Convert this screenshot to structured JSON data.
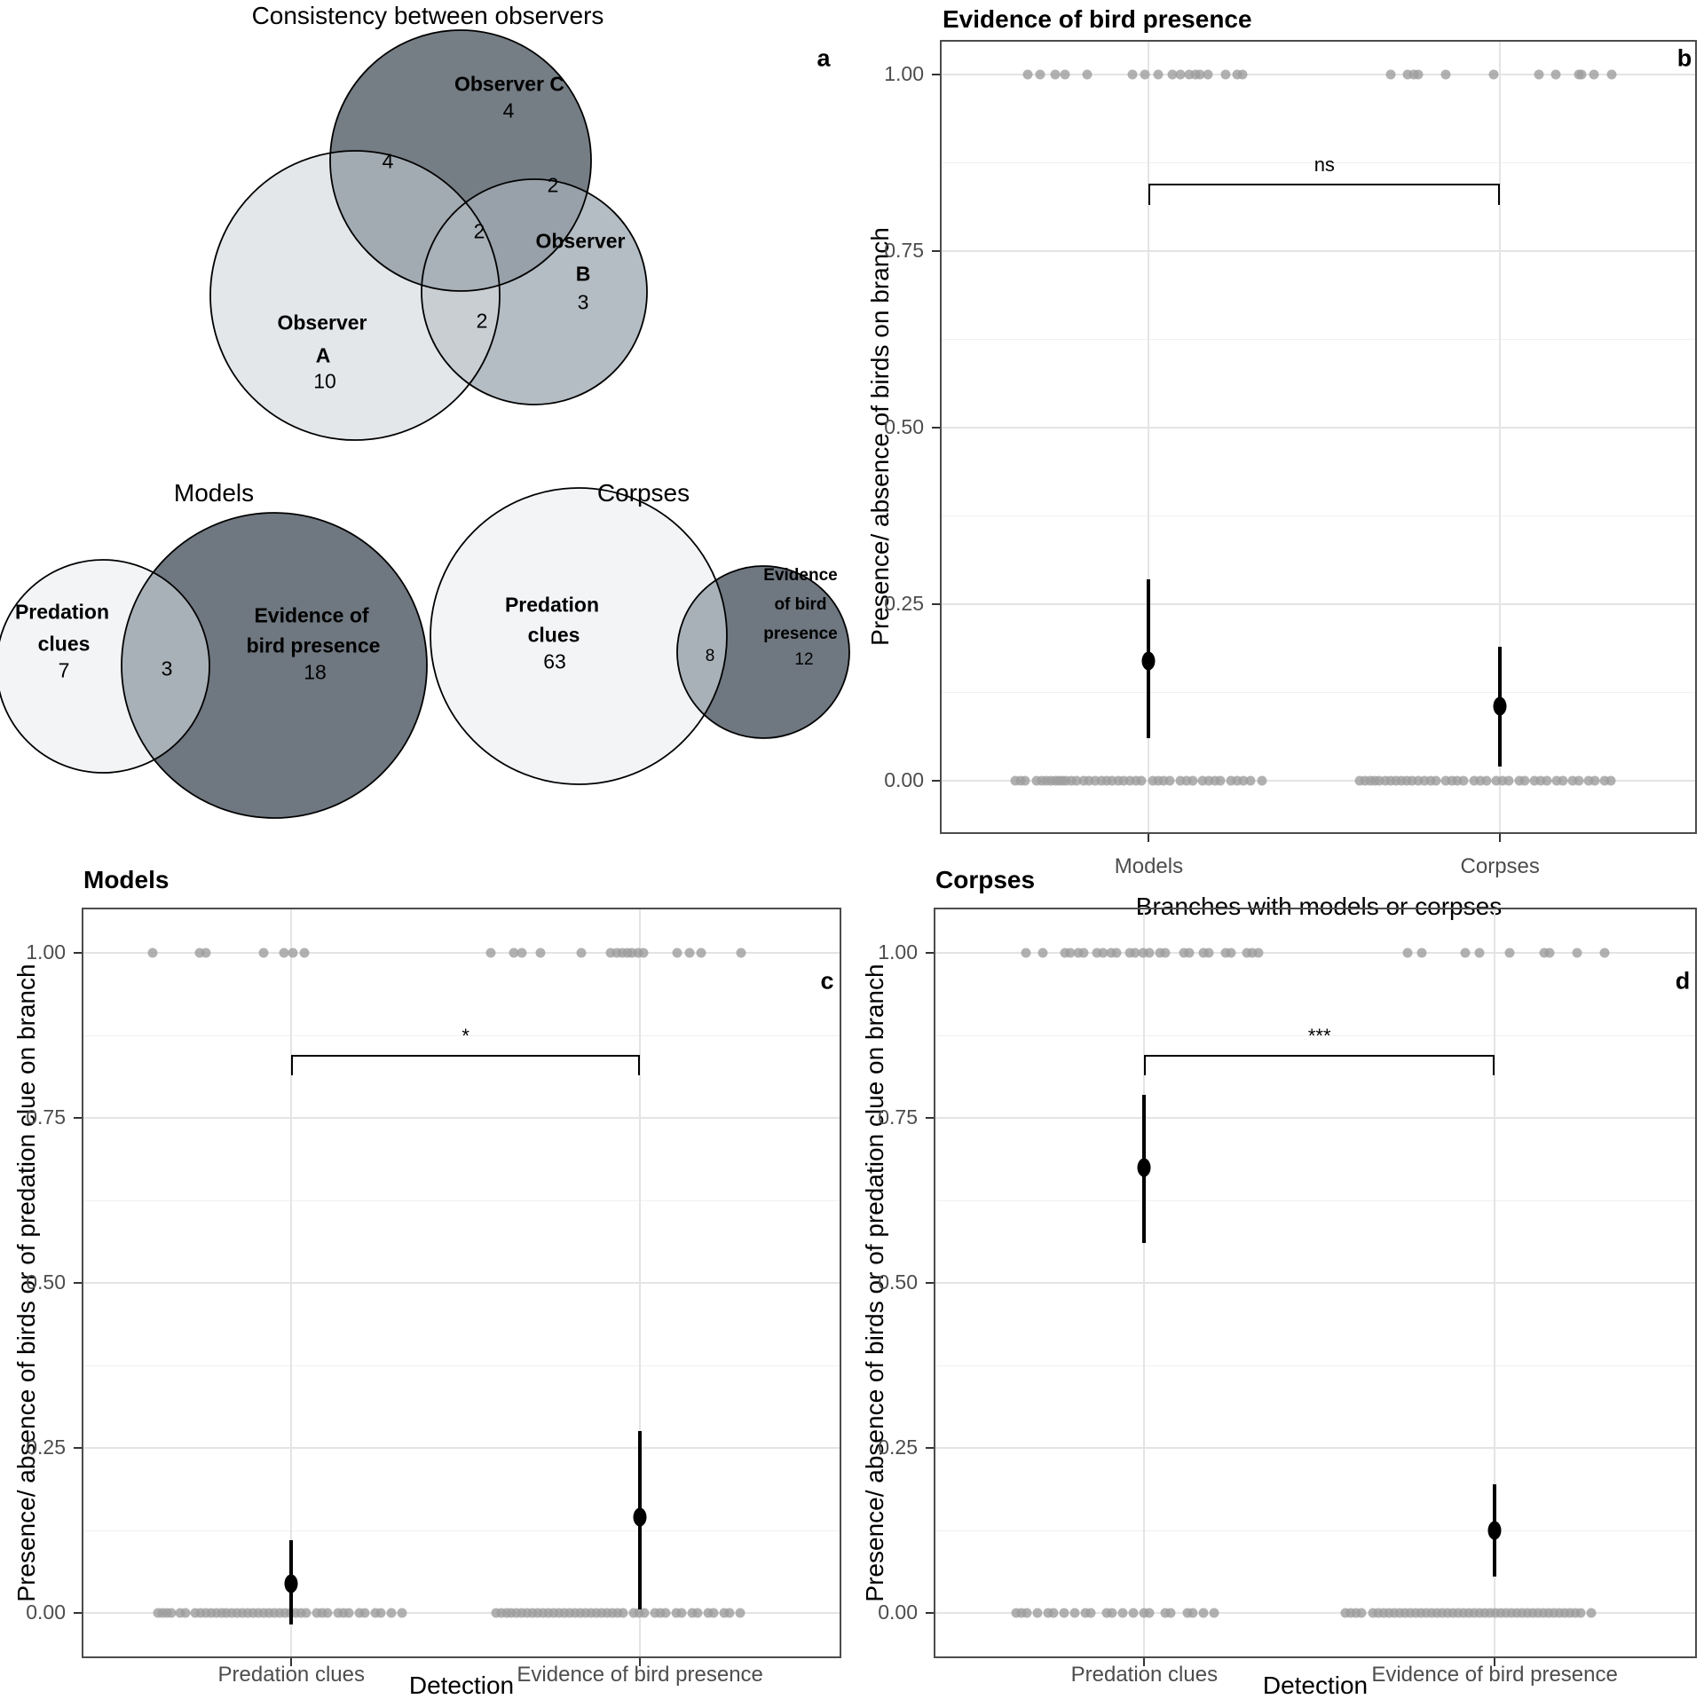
{
  "figure": {
    "panel_letters": {
      "a": "a",
      "b": "b",
      "c": "c",
      "d": "d"
    }
  },
  "colors": {
    "background": "#ffffff",
    "dot_gray": "#9e9e9e",
    "estimate_black": "#000000",
    "grid_major": "#e4e4e4",
    "grid_minor": "#f0f0f0",
    "panel_border": "#4c4c4c",
    "tick_label_gray": "#4d4d4d",
    "venn_light": "#e4e7ea",
    "venn_mid": "#b5bdc4",
    "venn_dark": "#757d85",
    "venn_lens_ac": "#a3abb2",
    "venn_lens_bc": "#98a1a9",
    "venn_lens_ab": "#c9ced3",
    "venn_triple": "#a9b1b9",
    "venn2_light": "#f2f4f6",
    "venn2_dark": "#6f7780",
    "venn2_lens": "#a9b1b8",
    "circle_stroke": "#000000"
  },
  "venn": {
    "observers": {
      "title": "Consistency between observers",
      "set_a": {
        "label_line1": "Observer",
        "label_line2": "A",
        "count": "10"
      },
      "set_b": {
        "label_line1": "Observer",
        "label_line2": "B",
        "count": "3"
      },
      "set_c": {
        "label": "Observer C",
        "count": "4"
      },
      "overlap_ac": "4",
      "overlap_bc": "2",
      "overlap_abc": "2",
      "overlap_ab": "2"
    },
    "models": {
      "title": "Models",
      "predation": {
        "line1": "Predation",
        "line2": "clues",
        "count": "7"
      },
      "evidence": {
        "line1": "Evidence of",
        "line2": "bird presence",
        "count": "18"
      },
      "overlap": "3"
    },
    "corpses": {
      "title": "Corpses",
      "predation": {
        "line1": "Predation",
        "line2": "clues",
        "count": "63"
      },
      "evidence": {
        "line1": "Evidence",
        "line2": "of bird",
        "line3": "presence",
        "count": "12"
      },
      "overlap": "8"
    }
  },
  "chart_data": [
    {
      "id": "b",
      "type": "scatter",
      "title": "Evidence of bird presence",
      "letter": "b",
      "xlabel": "Branches with models or corpses",
      "ylabel": "Presence/ absence of birds on branch",
      "ylim": [
        0,
        1
      ],
      "grid": true,
      "yticks": [
        "1.00",
        "0.75",
        "0.50",
        "0.25",
        "0.00"
      ],
      "ytick_values": [
        1.0,
        0.75,
        0.5,
        0.25,
        0.0
      ],
      "groups": [
        {
          "label": "Models",
          "estimate": 0.17,
          "ci_low": 0.06,
          "ci_high": 0.285,
          "ones_x": [
            0.116,
            0.132,
            0.152,
            0.165,
            0.195,
            0.254,
            0.271,
            0.288,
            0.307,
            0.318,
            0.33,
            0.338,
            0.344,
            0.354,
            0.377,
            0.393,
            0.4
          ],
          "zeros_x": [
            0.1,
            0.107,
            0.113,
            0.128,
            0.135,
            0.141,
            0.147,
            0.152,
            0.157,
            0.162,
            0.167,
            0.173,
            0.18,
            0.19,
            0.197,
            0.205,
            0.213,
            0.22,
            0.228,
            0.236,
            0.243,
            0.251,
            0.259,
            0.266,
            0.281,
            0.288,
            0.296,
            0.304,
            0.318,
            0.326,
            0.334,
            0.347,
            0.355,
            0.363,
            0.371,
            0.385,
            0.393,
            0.401,
            0.41,
            0.425
          ]
        },
        {
          "label": "Corpses",
          "estimate": 0.105,
          "ci_low": 0.02,
          "ci_high": 0.19,
          "ones_x": [
            0.595,
            0.618,
            0.626,
            0.632,
            0.668,
            0.731,
            0.791,
            0.814,
            0.844,
            0.848,
            0.864,
            0.887
          ],
          "zeros_x": [
            0.555,
            0.562,
            0.568,
            0.574,
            0.58,
            0.588,
            0.595,
            0.602,
            0.61,
            0.617,
            0.624,
            0.632,
            0.64,
            0.648,
            0.655,
            0.668,
            0.676,
            0.684,
            0.692,
            0.706,
            0.714,
            0.722,
            0.735,
            0.743,
            0.751,
            0.765,
            0.773,
            0.786,
            0.794,
            0.802,
            0.815,
            0.823,
            0.836,
            0.844,
            0.857,
            0.865,
            0.878,
            0.886
          ]
        }
      ],
      "significance": {
        "label": "ns",
        "bracket_y": 0.845,
        "tick_drop": 0.03,
        "label_y": 0.878
      }
    },
    {
      "id": "c",
      "type": "scatter",
      "title": "Models",
      "letter": "c",
      "xlabel": "Detection",
      "ylabel": "Presence/ absence of birds or of predation clue on branch",
      "ylim": [
        0,
        1
      ],
      "grid": true,
      "yticks": [
        "1.00",
        "0.75",
        "0.50",
        "0.25",
        "0.00"
      ],
      "ytick_values": [
        1.0,
        0.75,
        0.5,
        0.25,
        0.0
      ],
      "groups": [
        {
          "label": "Predation clues",
          "estimate": 0.045,
          "ci_low": -0.018,
          "ci_high": 0.11,
          "ones_x": [
            0.094,
            0.155,
            0.164,
            0.239,
            0.266,
            0.278,
            0.293
          ],
          "zeros_x": [
            0.1,
            0.106,
            0.112,
            0.118,
            0.13,
            0.137,
            0.15,
            0.157,
            0.163,
            0.17,
            0.177,
            0.184,
            0.191,
            0.198,
            0.205,
            0.212,
            0.219,
            0.226,
            0.233,
            0.24,
            0.247,
            0.254,
            0.261,
            0.268,
            0.275,
            0.282,
            0.289,
            0.296,
            0.31,
            0.317,
            0.324,
            0.338,
            0.345,
            0.352,
            0.366,
            0.373,
            0.387,
            0.394,
            0.408,
            0.422
          ]
        },
        {
          "label": "Evidence of bird presence",
          "estimate": 0.145,
          "ci_low": 0.005,
          "ci_high": 0.275,
          "ones_x": [
            0.539,
            0.569,
            0.58,
            0.604,
            0.658,
            0.696,
            0.705,
            0.712,
            0.718,
            0.724,
            0.733,
            0.739,
            0.784,
            0.8,
            0.815,
            0.868
          ],
          "zeros_x": [
            0.545,
            0.552,
            0.559,
            0.566,
            0.573,
            0.58,
            0.587,
            0.594,
            0.601,
            0.608,
            0.615,
            0.622,
            0.629,
            0.636,
            0.643,
            0.65,
            0.657,
            0.664,
            0.671,
            0.678,
            0.685,
            0.692,
            0.699,
            0.706,
            0.713,
            0.727,
            0.734,
            0.741,
            0.755,
            0.762,
            0.769,
            0.783,
            0.79,
            0.804,
            0.811,
            0.825,
            0.832,
            0.846,
            0.853,
            0.867
          ]
        }
      ],
      "significance": {
        "label": "*",
        "bracket_y": 0.845,
        "tick_drop": 0.03,
        "label_y": 0.878
      }
    },
    {
      "id": "d",
      "type": "scatter",
      "title": "Corpses",
      "letter": "d",
      "xlabel": "Detection",
      "ylabel": "Presence/ absence of birds or of predation clue on branch",
      "ylim": [
        0,
        1
      ],
      "grid": true,
      "yticks": [
        "1.00",
        "0.75",
        "0.50",
        "0.25",
        "0.00"
      ],
      "ytick_values": [
        1.0,
        0.75,
        0.5,
        0.25,
        0.0
      ],
      "groups": [
        {
          "label": "Predation clues",
          "estimate": 0.675,
          "ci_low": 0.56,
          "ci_high": 0.785,
          "ones_x": [
            0.121,
            0.143,
            0.172,
            0.179,
            0.189,
            0.196,
            0.214,
            0.222,
            0.232,
            0.239,
            0.257,
            0.264,
            0.274,
            0.283,
            0.297,
            0.304,
            0.328,
            0.335,
            0.354,
            0.361,
            0.382,
            0.389,
            0.411,
            0.418,
            0.425
          ],
          "zeros_x": [
            0.108,
            0.115,
            0.122,
            0.136,
            0.15,
            0.157,
            0.171,
            0.185,
            0.199,
            0.206,
            0.227,
            0.234,
            0.248,
            0.262,
            0.276,
            0.283,
            0.304,
            0.311,
            0.332,
            0.339,
            0.353,
            0.367
          ]
        },
        {
          "label": "Evidence of bird presence",
          "estimate": 0.125,
          "ci_low": 0.055,
          "ci_high": 0.195,
          "ones_x": [
            0.621,
            0.64,
            0.697,
            0.715,
            0.755,
            0.8,
            0.807,
            0.843,
            0.879
          ],
          "zeros_x": [
            0.54,
            0.547,
            0.554,
            0.561,
            0.575,
            0.582,
            0.589,
            0.596,
            0.603,
            0.61,
            0.617,
            0.624,
            0.631,
            0.638,
            0.645,
            0.652,
            0.659,
            0.666,
            0.673,
            0.68,
            0.687,
            0.694,
            0.701,
            0.708,
            0.715,
            0.722,
            0.729,
            0.736,
            0.743,
            0.75,
            0.757,
            0.764,
            0.771,
            0.778,
            0.785,
            0.792,
            0.799,
            0.806,
            0.813,
            0.82,
            0.827,
            0.834,
            0.841,
            0.848,
            0.862
          ]
        }
      ],
      "significance": {
        "label": "***",
        "bracket_y": 0.845,
        "tick_drop": 0.03,
        "label_y": 0.878
      }
    }
  ]
}
